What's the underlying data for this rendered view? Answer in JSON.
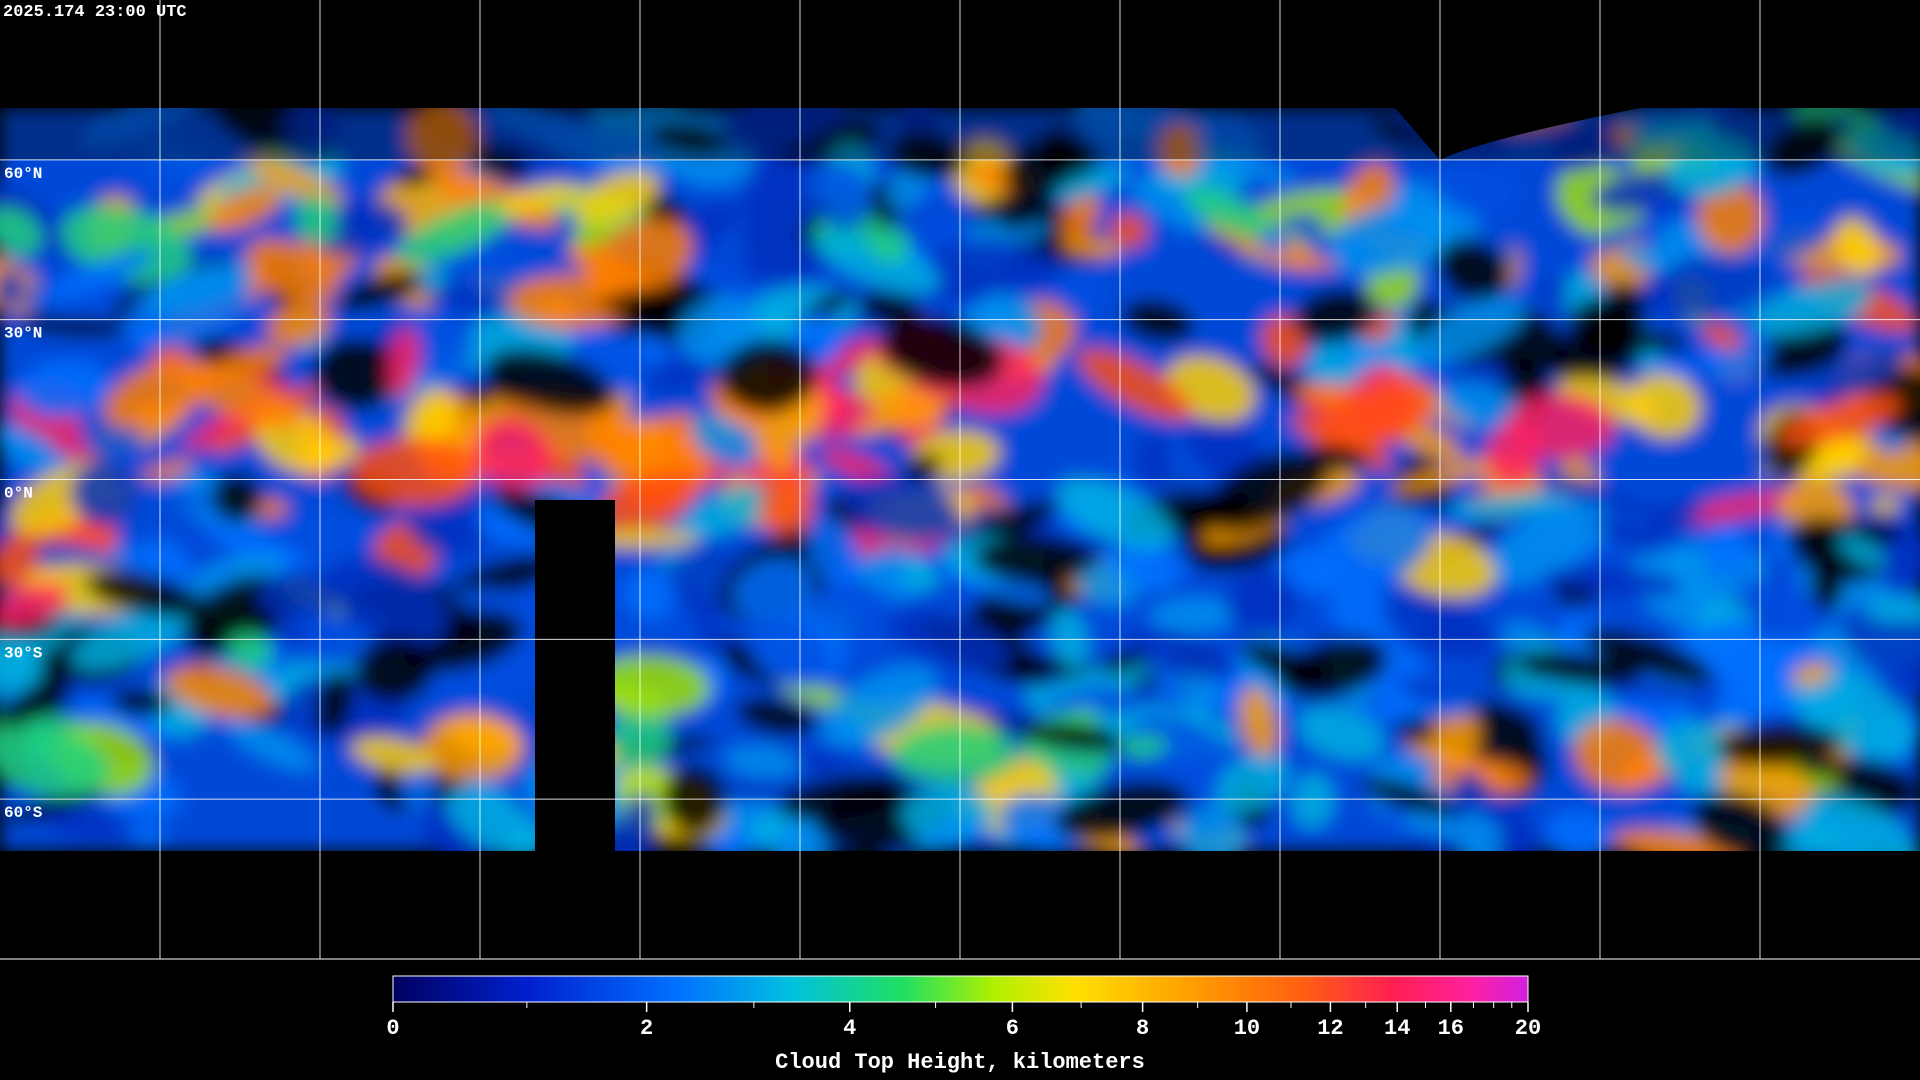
{
  "header": {
    "timestamp": "2025.174 23:00 UTC"
  },
  "map": {
    "graticule_latitudes": [
      {
        "value": 60,
        "label": "60°N"
      },
      {
        "value": 30,
        "label": "30°N"
      },
      {
        "value": 0,
        "label": "0°N"
      },
      {
        "value": -30,
        "label": "30°S"
      },
      {
        "value": -60,
        "label": "60°S"
      }
    ]
  },
  "colorbar": {
    "label": "Cloud Top Height, kilometers",
    "range": [
      0,
      20
    ],
    "ticks": [
      0,
      2,
      4,
      6,
      8,
      10,
      12,
      14,
      16,
      20
    ],
    "minor_ticks": [
      1,
      3,
      5,
      7,
      9,
      11,
      13,
      15,
      17,
      18,
      19
    ]
  }
}
